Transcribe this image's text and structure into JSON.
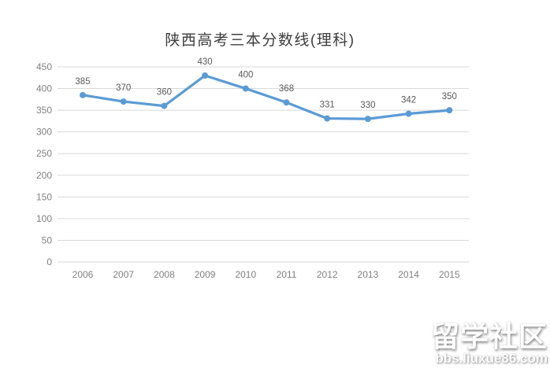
{
  "title": "陕西高考三本分数线(理科)",
  "watermark": {
    "name": "留学社区",
    "url": "bbs.liuxue86.com"
  },
  "chart_data": {
    "type": "line",
    "title": "陕西高考三本分数线(理科)",
    "categories": [
      "2006",
      "2007",
      "2008",
      "2009",
      "2010",
      "2011",
      "2012",
      "2013",
      "2014",
      "2015"
    ],
    "values": [
      385,
      370,
      360,
      430,
      400,
      368,
      331,
      330,
      342,
      350
    ],
    "xlabel": "",
    "ylabel": "",
    "ylim": [
      0,
      450
    ],
    "yticks": [
      0,
      50,
      100,
      150,
      200,
      250,
      300,
      350,
      400,
      450
    ],
    "grid": true,
    "legend_position": "none",
    "data_labels": true,
    "line_color": "#5B9BD5",
    "marker_color": "#5B9BD5",
    "gridline_color": "#D9D9D9",
    "tick_label_color": "#808080",
    "data_label_color": "#595959",
    "title_color": "#3d3d3d"
  }
}
